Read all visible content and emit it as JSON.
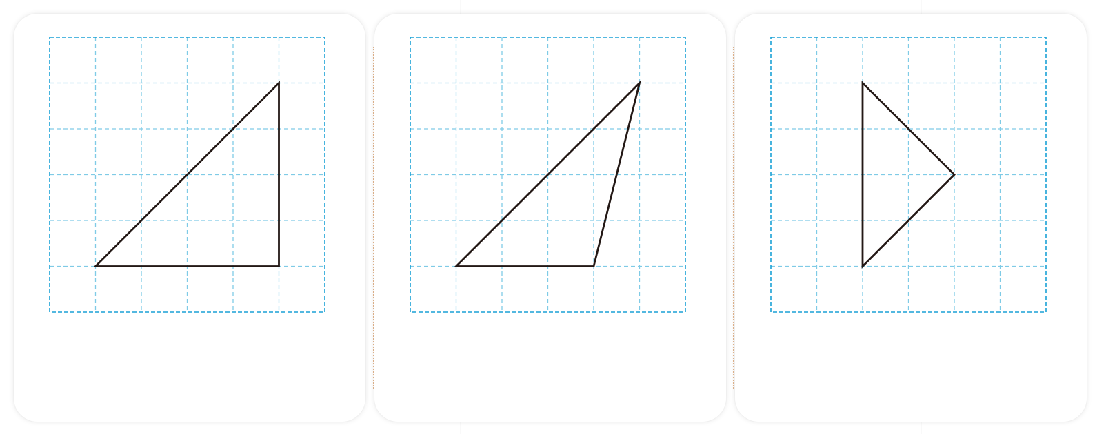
{
  "colors": {
    "grid_line": "#7fcbe6",
    "grid_border": "#1aa1d6",
    "shape_stroke": "#231815",
    "divider": "#e2b48c",
    "card_bg": "#ffffff"
  },
  "grid": {
    "columns": 6,
    "rows": 6
  },
  "cards": [
    {
      "name": "card-1",
      "shape": "right-triangle",
      "vertices": [
        [
          1,
          5
        ],
        [
          5,
          1
        ],
        [
          5,
          5
        ]
      ]
    },
    {
      "name": "card-2",
      "shape": "obtuse-triangle",
      "vertices": [
        [
          1,
          5
        ],
        [
          5,
          1
        ],
        [
          4,
          5
        ]
      ]
    },
    {
      "name": "card-3",
      "shape": "isosceles-right-triangle",
      "vertices": [
        [
          2,
          1
        ],
        [
          4,
          3
        ],
        [
          2,
          5
        ]
      ]
    }
  ]
}
